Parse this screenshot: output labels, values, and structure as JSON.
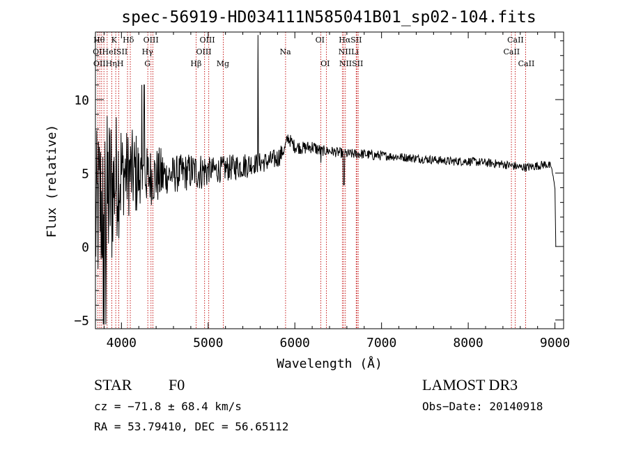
{
  "chart_data": {
    "type": "line",
    "title": "spec-56919-HD034111N585041B01_sp02-104.fits",
    "xlabel": "Wavelength (Å)",
    "ylabel": "Flux (relative)",
    "xlim": [
      3700,
      9100
    ],
    "ylim": [
      -5.6,
      14.6
    ],
    "xticks": [
      {
        "value": 4000,
        "label": "4000"
      },
      {
        "value": 5000,
        "label": "5000"
      },
      {
        "value": 6000,
        "label": "6000"
      },
      {
        "value": 7000,
        "label": "7000"
      },
      {
        "value": 8000,
        "label": "8000"
      },
      {
        "value": 9000,
        "label": "9000"
      }
    ],
    "yticks": [
      {
        "value": -5,
        "label": "−5"
      },
      {
        "value": 0,
        "label": "0"
      },
      {
        "value": 5,
        "label": "5"
      },
      {
        "value": 10,
        "label": "10"
      }
    ],
    "spectrum_anchors": [
      [
        3700,
        1.5
      ],
      [
        3750,
        3.0
      ],
      [
        3800,
        2.5
      ],
      [
        3850,
        3.5
      ],
      [
        3900,
        4.0
      ],
      [
        3950,
        5.0
      ],
      [
        4000,
        5.0
      ],
      [
        4100,
        5.0
      ],
      [
        4200,
        4.9
      ],
      [
        4300,
        4.8
      ],
      [
        4400,
        4.8
      ],
      [
        4500,
        4.8
      ],
      [
        4600,
        4.9
      ],
      [
        4700,
        5.0
      ],
      [
        4800,
        5.1
      ],
      [
        4900,
        5.1
      ],
      [
        5000,
        5.2
      ],
      [
        5100,
        5.2
      ],
      [
        5200,
        5.3
      ],
      [
        5300,
        5.4
      ],
      [
        5400,
        5.5
      ],
      [
        5500,
        5.6
      ],
      [
        5600,
        5.7
      ],
      [
        5700,
        5.8
      ],
      [
        5800,
        6.0
      ],
      [
        5880,
        6.6
      ],
      [
        5920,
        7.4
      ],
      [
        6000,
        6.8
      ],
      [
        6100,
        6.7
      ],
      [
        6200,
        6.8
      ],
      [
        6300,
        6.5
      ],
      [
        6400,
        6.5
      ],
      [
        6500,
        6.4
      ],
      [
        6600,
        6.3
      ],
      [
        6700,
        6.3
      ],
      [
        6800,
        6.3
      ],
      [
        6900,
        6.2
      ],
      [
        7000,
        6.2
      ],
      [
        7200,
        6.1
      ],
      [
        7400,
        6.0
      ],
      [
        7600,
        5.9
      ],
      [
        7800,
        5.8
      ],
      [
        8000,
        5.8
      ],
      [
        8200,
        5.7
      ],
      [
        8400,
        5.6
      ],
      [
        8500,
        5.5
      ],
      [
        8600,
        5.4
      ],
      [
        8700,
        5.4
      ],
      [
        8800,
        5.5
      ],
      [
        8900,
        5.6
      ],
      [
        8960,
        5.4
      ],
      [
        9000,
        4.0
      ],
      [
        9010,
        0.0
      ]
    ],
    "lines": [
      {
        "wave": 3727,
        "labels": [
          "OII"
        ]
      },
      {
        "wave": 3750,
        "labels": [
          "Hθ"
        ]
      },
      {
        "wave": 3771,
        "labels": [
          "Hη"
        ]
      },
      {
        "wave": 3798,
        "labels": [
          "HeI"
        ]
      },
      {
        "wave": 3835,
        "labels": [
          "Hη"
        ]
      },
      {
        "wave": 3889,
        "labels": [
          "H"
        ]
      },
      {
        "wave": 3934,
        "labels": [
          "K"
        ]
      },
      {
        "wave": 3969,
        "labels": [
          "H"
        ]
      },
      {
        "wave": 4070,
        "labels": [
          "SII"
        ]
      },
      {
        "wave": 4102,
        "labels": [
          "Hδ"
        ]
      },
      {
        "wave": 4304,
        "labels": [
          "G"
        ]
      },
      {
        "wave": 4341,
        "labels": [
          "Hγ"
        ]
      },
      {
        "wave": 4363,
        "labels": [
          "OIII"
        ]
      },
      {
        "wave": 4861,
        "labels": [
          "Hβ"
        ]
      },
      {
        "wave": 4959,
        "labels": [
          "OIII"
        ]
      },
      {
        "wave": 5007,
        "labels": [
          "OIII"
        ]
      },
      {
        "wave": 5175,
        "labels": [
          "Mg"
        ]
      },
      {
        "wave": 5893,
        "labels": [
          "Na"
        ]
      },
      {
        "wave": 6300,
        "labels": [
          "OI"
        ]
      },
      {
        "wave": 6364,
        "labels": [
          "OI"
        ]
      },
      {
        "wave": 6548,
        "labels": [
          "NII"
        ]
      },
      {
        "wave": 6563,
        "labels": [
          "Hα"
        ]
      },
      {
        "wave": 6583,
        "labels": [
          "NII"
        ]
      },
      {
        "wave": 6708,
        "labels": [
          "Li"
        ]
      },
      {
        "wave": 6716,
        "labels": [
          "SII"
        ]
      },
      {
        "wave": 6731,
        "labels": [
          "SII"
        ]
      },
      {
        "wave": 8498,
        "labels": [
          "CaII"
        ]
      },
      {
        "wave": 8542,
        "labels": [
          "CaII"
        ]
      },
      {
        "wave": 8662,
        "labels": [
          "CaII"
        ]
      }
    ],
    "line_labels": [
      {
        "text": "Hθ",
        "wave": 3742,
        "row": 0
      },
      {
        "text": "K",
        "wave": 3915,
        "row": 0
      },
      {
        "text": "Hδ",
        "wave": 4080,
        "row": 0
      },
      {
        "text": "OIII",
        "wave": 4340,
        "row": 0
      },
      {
        "text": "OIII",
        "wave": 4990,
        "row": 0
      },
      {
        "text": "OI",
        "wave": 6290,
        "row": 0
      },
      {
        "text": "HαSII",
        "wave": 6640,
        "row": 0
      },
      {
        "text": "CaII",
        "wave": 8545,
        "row": 0
      },
      {
        "text": "OIHeISII",
        "wave": 3870,
        "row": 1
      },
      {
        "text": "Hγ",
        "wave": 4300,
        "row": 1
      },
      {
        "text": "OIII",
        "wave": 4950,
        "row": 1
      },
      {
        "text": "Na",
        "wave": 5890,
        "row": 1
      },
      {
        "text": "NIILi",
        "wave": 6620,
        "row": 1
      },
      {
        "text": "CaII",
        "wave": 8500,
        "row": 1
      },
      {
        "text": "OIIHηH",
        "wave": 3850,
        "row": 2
      },
      {
        "text": "G",
        "wave": 4300,
        "row": 2
      },
      {
        "text": "Hβ",
        "wave": 4860,
        "row": 2
      },
      {
        "text": "Mg",
        "wave": 5170,
        "row": 2
      },
      {
        "text": "OI",
        "wave": 6350,
        "row": 2
      },
      {
        "text": "NIISII",
        "wave": 6650,
        "row": 2
      },
      {
        "text": "CaII",
        "wave": 8670,
        "row": 2
      }
    ]
  },
  "info": {
    "object_class": "STAR",
    "subclass": "F0",
    "survey": "LAMOST DR3",
    "cz": "cz = −71.8 ± 68.4 km/s",
    "obs_date": "Obs−Date: 20140918",
    "radec": "RA =  53.79410, DEC =  56.65112"
  }
}
